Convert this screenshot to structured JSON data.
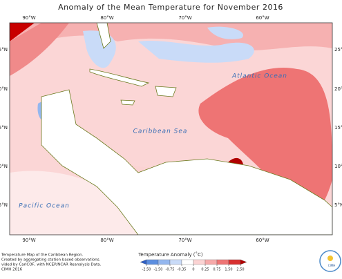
{
  "title": "Anomaly of the Mean Temperature for November 2016",
  "lon_labels": [
    "90°W",
    "80°W",
    "70°W",
    "60°W"
  ],
  "lat_labels_left": [
    "5°N",
    "0°N",
    "5°N",
    "0°N",
    "5°N"
  ],
  "lat_labels_right": [
    "25°N",
    "20°N",
    "15°N",
    "10°N",
    "5°N"
  ],
  "oceans": {
    "atlantic": "Atlantic Ocean",
    "caribbean": "Caribbean Sea",
    "pacific": "Pacific Ocean"
  },
  "credits": [
    "Temperature Map of the Caribbean Region.",
    "Created by aggregating station based observations.",
    "vided by CariCOF, with NCEP/NCAR Reanalysis Data.",
    "CIMH 2016"
  ],
  "colorbar": {
    "title": "Temperature Anomaly (˚C)",
    "ticks": [
      {
        "value": -2.5,
        "label": "-2.50"
      },
      {
        "value": -1.5,
        "label": "-1.50"
      },
      {
        "value": -0.75,
        "label": "-0.75"
      },
      {
        "value": -0.35,
        "label": "-0.35"
      },
      0,
      {
        "value": 0.25,
        "label": "0.25"
      },
      {
        "value": 0.75,
        "label": "0.75"
      },
      {
        "value": 1.5,
        "label": "1.50"
      },
      {
        "value": 2.5,
        "label": "2.50"
      }
    ],
    "colors": [
      "#2f5fc4",
      "#5b8ee0",
      "#94b7ef",
      "#c9dbf8",
      "#ffffff",
      "#fbd3d3",
      "#f6a9a9",
      "#ee7474",
      "#d83030",
      "#b00000"
    ]
  },
  "logo": "CIMH"
}
